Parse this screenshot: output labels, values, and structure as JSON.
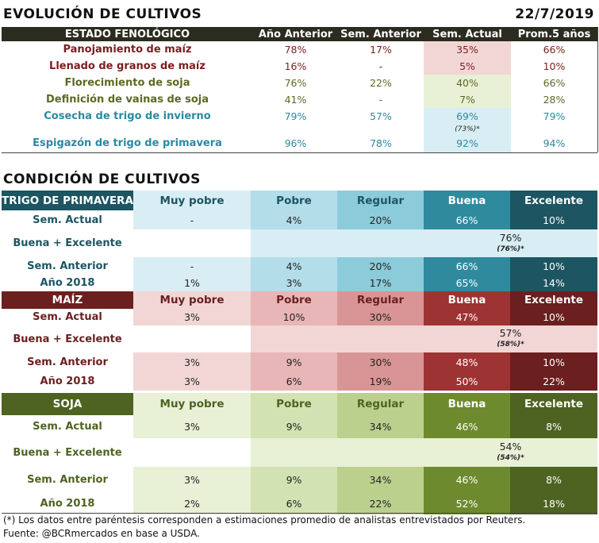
{
  "evolucion": {
    "title": "EVOLUCIÓN DE CULTIVOS",
    "date": "22/7/2019",
    "headers": [
      "ESTADO FENOLÓGICO",
      "Año Anterior",
      "Sem. Anterior",
      "Sem. Actual",
      "Prom.5 años"
    ],
    "rows": [
      {
        "label": "Panojamiento de maíz",
        "anio_ant": "78%",
        "sem_ant": "17%",
        "sem_act": "35%",
        "prom": "66%"
      },
      {
        "label": "Llenado de granos de maíz",
        "anio_ant": "16%",
        "sem_ant": "-",
        "sem_act": "5%",
        "prom": "10%"
      },
      {
        "label": "Florecimiento de soja",
        "anio_ant": "76%",
        "sem_ant": "22%",
        "sem_act": "40%",
        "prom": "66%"
      },
      {
        "label": "Definición de vainas de soja",
        "anio_ant": "41%",
        "sem_ant": "-",
        "sem_act": "7%",
        "prom": "28%"
      },
      {
        "label": "Cosecha de trigo de invierno",
        "anio_ant": "79%",
        "sem_ant": "57%",
        "sem_act": "69%",
        "prom": "79%"
      },
      {
        "label": "Espigazón de trigo de primavera",
        "anio_ant": "96%",
        "sem_ant": "78%",
        "sem_act": "92%",
        "prom": "94%"
      }
    ],
    "trigo_inv_estimate": "(73%)*"
  },
  "condicion": {
    "title": "CONDICIÓN  DE CULTIVOS",
    "trigo": {
      "name": "TRIGO DE PRIMAVERA",
      "cols": [
        "Muy pobre",
        "Pobre",
        "Regular",
        "Buena",
        "Excelente"
      ],
      "sem_actual": {
        "label": "Sem. Actual",
        "v": [
          "-",
          "4%",
          "20%",
          "66%",
          "10%"
        ]
      },
      "buena_exc": {
        "label": "Buena + Excelente",
        "v": "76%",
        "est": "(76%)*"
      },
      "sem_anterior": {
        "label": "Sem. Anterior",
        "v": [
          "-",
          "4%",
          "20%",
          "66%",
          "10%"
        ]
      },
      "anio": {
        "label": "Año 2018",
        "v": [
          "1%",
          "3%",
          "17%",
          "65%",
          "14%"
        ]
      }
    },
    "maiz": {
      "name": "MAÍZ",
      "cols": [
        "Muy pobre",
        "Pobre",
        "Regular",
        "Buena",
        "Excelente"
      ],
      "sem_actual": {
        "label": "Sem. Actual",
        "v": [
          "3%",
          "10%",
          "30%",
          "47%",
          "10%"
        ]
      },
      "buena_exc": {
        "label": "Buena + Excelente",
        "v": "57%",
        "est": "(58%)*"
      },
      "sem_anterior": {
        "label": "Sem. Anterior",
        "v": [
          "3%",
          "9%",
          "30%",
          "48%",
          "10%"
        ]
      },
      "anio": {
        "label": "Año 2018",
        "v": [
          "3%",
          "6%",
          "19%",
          "50%",
          "22%"
        ]
      }
    },
    "soja": {
      "name": "SOJA",
      "cols": [
        "Muy pobre",
        "Pobre",
        "Regular",
        "Buena",
        "Excelente"
      ],
      "sem_actual": {
        "label": "Sem. Actual",
        "v": [
          "3%",
          "9%",
          "34%",
          "46%",
          "8%"
        ]
      },
      "buena_exc": {
        "label": "Buena + Excelente",
        "v": "54%",
        "est": "(54%)*"
      },
      "sem_anterior": {
        "label": "Sem. Anterior",
        "v": [
          "3%",
          "9%",
          "34%",
          "46%",
          "8%"
        ]
      },
      "anio": {
        "label": "Año 2018",
        "v": [
          "2%",
          "6%",
          "22%",
          "52%",
          "18%"
        ]
      }
    }
  },
  "footer": {
    "note": "(*) Los datos entre paréntesis corresponden a estimaciones promedio de analistas entrevistados por Reuters.",
    "source": "Fuente: @BCRmercados en base a USDA."
  },
  "colors": {
    "trigo": [
      "#d9eef4",
      "#b3dde8",
      "#8ccbd9",
      "#2f8a9e",
      "#1d5563"
    ],
    "maiz": [
      "#f2d6d6",
      "#e8b6b6",
      "#d99595",
      "#9e3333",
      "#6b1f1f"
    ],
    "soja": [
      "#e8f0d6",
      "#d3e2b2",
      "#bcd08e",
      "#6e8a2e",
      "#4e6322"
    ]
  }
}
